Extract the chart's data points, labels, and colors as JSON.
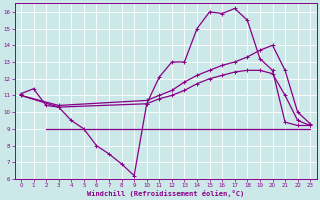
{
  "xlabel": "Windchill (Refroidissement éolien,°C)",
  "xlim": [
    -0.5,
    23.5
  ],
  "ylim": [
    6,
    16.5
  ],
  "xticks": [
    0,
    1,
    2,
    3,
    4,
    5,
    6,
    7,
    8,
    9,
    10,
    11,
    12,
    13,
    14,
    15,
    16,
    17,
    18,
    19,
    20,
    21,
    22,
    23
  ],
  "yticks": [
    6,
    7,
    8,
    9,
    10,
    11,
    12,
    13,
    14,
    15,
    16
  ],
  "bg_color": "#cce8e8",
  "line_color": "#880088",
  "grid_color": "#aacccc",
  "line1_x": [
    0,
    1,
    2,
    3,
    4,
    5,
    6,
    7,
    8,
    9,
    10,
    11,
    12,
    13,
    14,
    15,
    16,
    17,
    18,
    19,
    20,
    21,
    22,
    23
  ],
  "line1_y": [
    11.1,
    11.4,
    10.4,
    10.3,
    9.5,
    9.0,
    8.0,
    7.5,
    6.9,
    6.2,
    10.5,
    12.1,
    13.0,
    13.0,
    15.0,
    16.0,
    15.9,
    16.2,
    15.5,
    13.2,
    12.5,
    9.4,
    9.2,
    9.2
  ],
  "line2_x": [
    0,
    3,
    10,
    11,
    12,
    13,
    14,
    15,
    16,
    17,
    18,
    19,
    20,
    21,
    22,
    23
  ],
  "line2_y": [
    11.0,
    10.4,
    10.7,
    11.0,
    11.3,
    11.8,
    12.2,
    12.5,
    12.8,
    13.0,
    13.3,
    13.7,
    14.0,
    12.5,
    10.0,
    9.3
  ],
  "line3_x": [
    0,
    3,
    10,
    11,
    12,
    13,
    14,
    15,
    16,
    17,
    18,
    19,
    20,
    21,
    22,
    23
  ],
  "line3_y": [
    11.0,
    10.3,
    10.5,
    10.8,
    11.0,
    11.3,
    11.7,
    12.0,
    12.2,
    12.4,
    12.5,
    12.5,
    12.3,
    11.0,
    9.5,
    9.2
  ],
  "hline_y": 9.0,
  "hline_x_start": 2,
  "hline_x_end": 23
}
